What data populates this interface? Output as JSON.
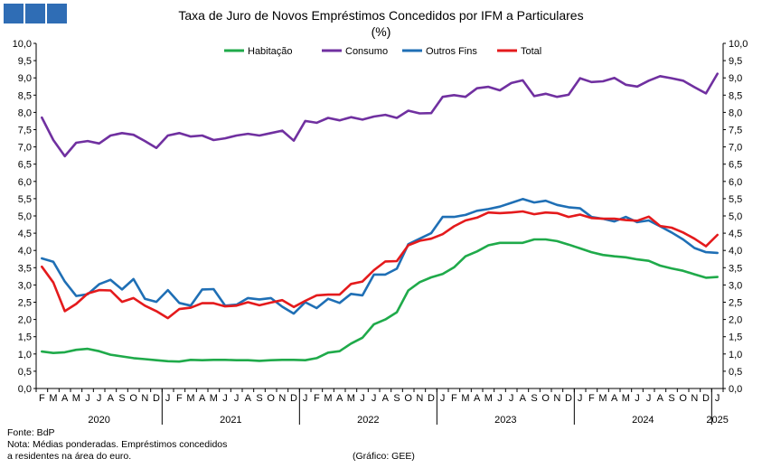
{
  "header": {
    "title": "Taxa de Juro de Novos Empréstimos  Concedidos por IFM a Particulares",
    "subtitle": "(%)"
  },
  "colors": {
    "logo": "#2f6db5",
    "habitacao": "#1faa4a",
    "consumo": "#7030a0",
    "outros": "#1f6fb5",
    "total": "#e41a1c"
  },
  "footer": {
    "source": "Fonte: BdP",
    "note_line1": "Nota: Médias ponderadas. Empréstimos concedidos",
    "note_line2": "a residentes na área do euro.",
    "credit": "(Gráfico: GEE)"
  },
  "chart_data": {
    "type": "line",
    "ylim": [
      0,
      10
    ],
    "ystep": 0.5,
    "y_ticks": [
      "0,0",
      "0,5",
      "1,0",
      "1,5",
      "2,0",
      "2,5",
      "3,0",
      "3,5",
      "4,0",
      "4,5",
      "5,0",
      "5,5",
      "6,0",
      "6,5",
      "7,0",
      "7,5",
      "8,0",
      "8,5",
      "9,0",
      "9,5",
      "10,0"
    ],
    "legend_position": "top",
    "grid": false,
    "month_labels": [
      "F",
      "M",
      "A",
      "M",
      "J",
      "J",
      "A",
      "S",
      "O",
      "N",
      "D",
      "J",
      "F",
      "M",
      "A",
      "M",
      "J",
      "J",
      "A",
      "S",
      "O",
      "N",
      "D",
      "J",
      "F",
      "M",
      "A",
      "M",
      "J",
      "J",
      "A",
      "S",
      "O",
      "N",
      "D",
      "J",
      "F",
      "M",
      "A",
      "M",
      "J",
      "J",
      "A",
      "S",
      "O",
      "N",
      "D",
      "J",
      "F",
      "M",
      "A",
      "M",
      "J",
      "J",
      "A",
      "S",
      "O",
      "N",
      "D",
      "J"
    ],
    "years": [
      {
        "label": "2020",
        "start": 0,
        "end": 11
      },
      {
        "label": "2021",
        "start": 11,
        "end": 23
      },
      {
        "label": "2022",
        "start": 23,
        "end": 35
      },
      {
        "label": "2023",
        "start": 35,
        "end": 47
      },
      {
        "label": "2024",
        "start": 47,
        "end": 59
      },
      {
        "label": "2025",
        "start": 59,
        "end": 60
      }
    ],
    "series": [
      {
        "name": "Habitação",
        "color": "#1faa4a",
        "values": [
          1.07,
          1.03,
          1.05,
          1.12,
          1.15,
          1.08,
          0.98,
          0.93,
          0.88,
          0.85,
          0.82,
          0.79,
          0.78,
          0.83,
          0.82,
          0.83,
          0.83,
          0.82,
          0.82,
          0.8,
          0.82,
          0.83,
          0.83,
          0.82,
          0.88,
          1.04,
          1.08,
          1.3,
          1.47,
          1.86,
          2.0,
          2.21,
          2.84,
          3.08,
          3.22,
          3.32,
          3.51,
          3.83,
          3.97,
          4.15,
          4.22,
          4.22,
          4.22,
          4.32,
          4.32,
          4.27,
          4.17,
          4.06,
          3.95,
          3.87,
          3.83,
          3.8,
          3.74,
          3.7,
          3.56,
          3.48,
          3.41,
          3.31,
          3.21,
          3.23
        ]
      },
      {
        "name": "Consumo",
        "color": "#7030a0",
        "values": [
          7.85,
          7.2,
          6.73,
          7.12,
          7.17,
          7.1,
          7.33,
          7.4,
          7.35,
          7.17,
          6.97,
          7.33,
          7.4,
          7.3,
          7.33,
          7.2,
          7.25,
          7.33,
          7.38,
          7.33,
          7.4,
          7.47,
          7.18,
          7.75,
          7.7,
          7.84,
          7.77,
          7.86,
          7.79,
          7.88,
          7.93,
          7.84,
          8.05,
          7.97,
          7.98,
          8.45,
          8.5,
          8.45,
          8.7,
          8.74,
          8.64,
          8.85,
          8.93,
          8.47,
          8.54,
          8.45,
          8.51,
          8.99,
          8.88,
          8.9,
          9.0,
          8.8,
          8.75,
          8.92,
          9.05,
          8.99,
          8.92,
          8.73,
          8.55,
          9.12
        ]
      },
      {
        "name": "Outros Fins",
        "color": "#1f6fb5",
        "values": [
          3.77,
          3.67,
          3.1,
          2.68,
          2.73,
          3.02,
          3.15,
          2.87,
          3.17,
          2.6,
          2.51,
          2.85,
          2.48,
          2.4,
          2.87,
          2.88,
          2.4,
          2.43,
          2.62,
          2.58,
          2.62,
          2.37,
          2.17,
          2.5,
          2.33,
          2.6,
          2.48,
          2.74,
          2.7,
          3.3,
          3.3,
          3.47,
          4.18,
          4.34,
          4.5,
          4.97,
          4.97,
          5.03,
          5.15,
          5.2,
          5.27,
          5.38,
          5.49,
          5.39,
          5.44,
          5.32,
          5.25,
          5.22,
          4.97,
          4.92,
          4.84,
          4.97,
          4.82,
          4.87,
          4.7,
          4.52,
          4.32,
          4.07,
          3.95,
          3.93
        ]
      },
      {
        "name": "Total",
        "color": "#e41a1c",
        "values": [
          3.53,
          3.07,
          2.24,
          2.45,
          2.75,
          2.85,
          2.84,
          2.51,
          2.62,
          2.4,
          2.24,
          2.04,
          2.3,
          2.34,
          2.47,
          2.47,
          2.38,
          2.4,
          2.5,
          2.41,
          2.49,
          2.56,
          2.36,
          2.54,
          2.7,
          2.72,
          2.72,
          3.03,
          3.1,
          3.43,
          3.68,
          3.69,
          4.15,
          4.28,
          4.34,
          4.47,
          4.7,
          4.87,
          4.95,
          5.1,
          5.08,
          5.1,
          5.13,
          5.05,
          5.1,
          5.08,
          4.97,
          5.04,
          4.94,
          4.92,
          4.92,
          4.88,
          4.86,
          4.98,
          4.71,
          4.66,
          4.52,
          4.34,
          4.12,
          4.45
        ]
      }
    ]
  }
}
